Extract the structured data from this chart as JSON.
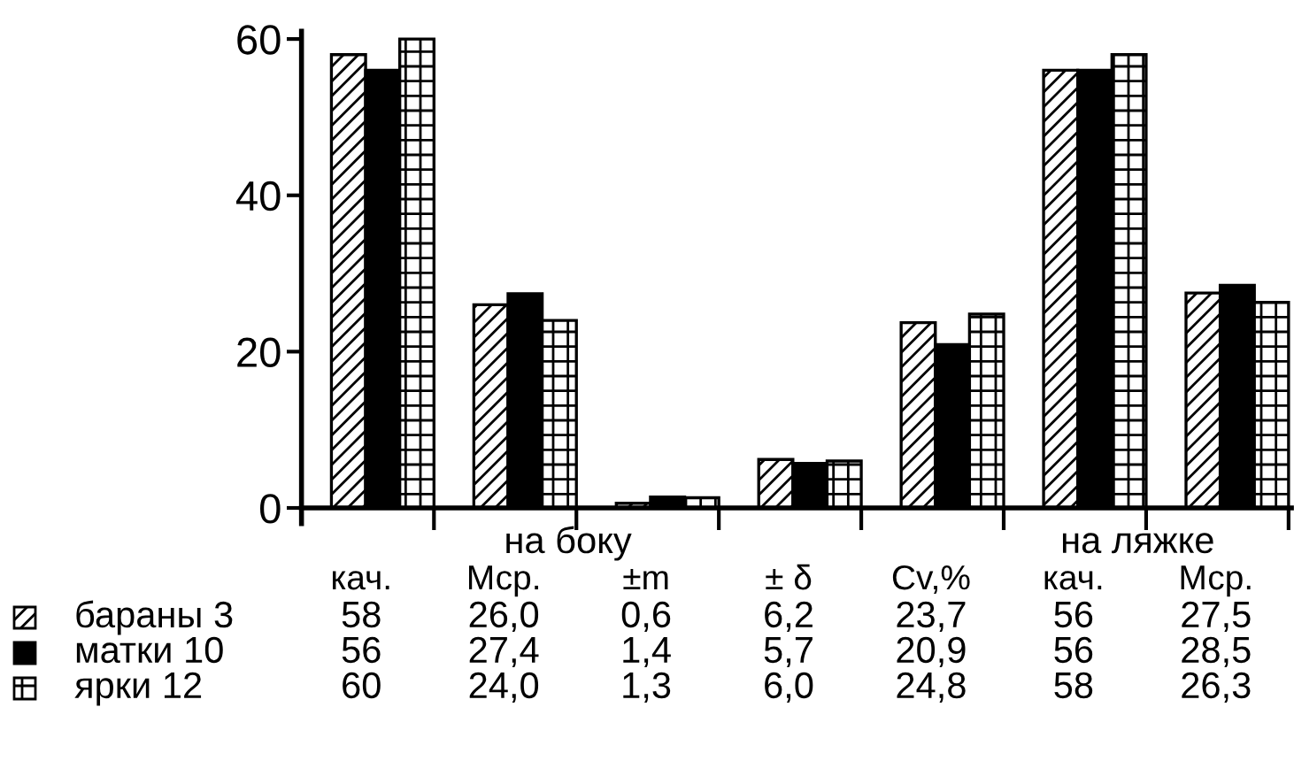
{
  "chart_data": {
    "type": "bar",
    "categories": [
      "кач.",
      "Мср.",
      "±m",
      "± δ",
      "Cv,%",
      "кач.",
      "Мср."
    ],
    "series": [
      {
        "name": "бараны 3",
        "color": "#000000",
        "values": [
          58,
          26.0,
          0.6,
          6.2,
          23.7,
          56,
          27.5
        ],
        "value_labels": [
          "58",
          "26,0",
          "0,6",
          "6,2",
          "23,7",
          "56",
          "27,5"
        ]
      },
      {
        "name": "матки 10",
        "color": "#000000",
        "values": [
          56,
          27.4,
          1.4,
          5.7,
          20.9,
          56,
          28.5
        ],
        "value_labels": [
          "56",
          "27,4",
          "1,4",
          "5,7",
          "20,9",
          "56",
          "28,5"
        ]
      },
      {
        "name": "ярки 12",
        "color": "#000000",
        "values": [
          60,
          24.0,
          1.3,
          6.0,
          24.8,
          58,
          26.3
        ],
        "value_labels": [
          "60",
          "24,0",
          "1,3",
          "6,0",
          "24,8",
          "58",
          "26,3"
        ]
      }
    ],
    "annotations": [
      "на боку",
      "на ляжке"
    ],
    "ylim": [
      -2,
      61
    ],
    "yticks": [
      0,
      20,
      40,
      60
    ],
    "grid": false,
    "legend": "bottom left"
  }
}
